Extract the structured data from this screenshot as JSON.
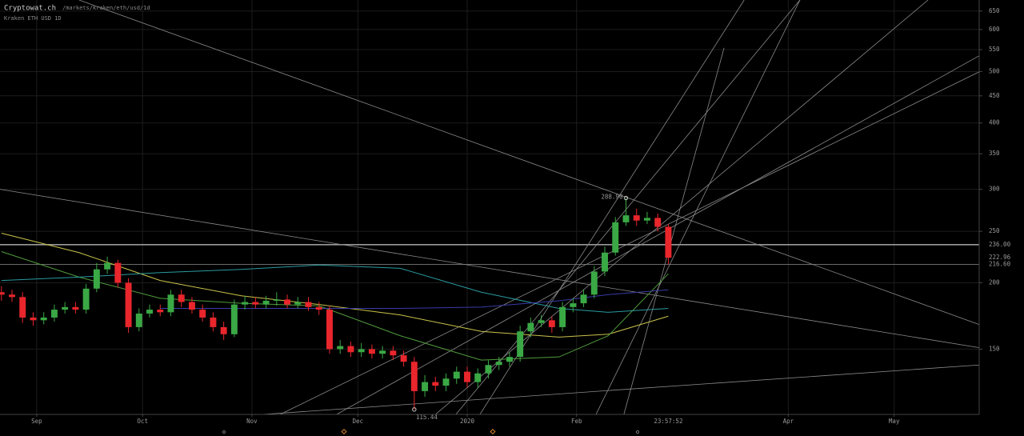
{
  "header": {
    "site": "Cryptowat.ch",
    "path": "/markets/kraken/eth/usd/1d",
    "market": "Kraken ETH USD 1D"
  },
  "chart_data": {
    "type": "candlestick",
    "log_y": true,
    "grid": true,
    "up_color": "#3aa845",
    "down_color": "#e8262c",
    "ylim": [
      113,
      682
    ],
    "yticks": [
      150,
      200,
      250,
      300,
      350,
      400,
      450,
      500,
      550,
      600,
      650
    ],
    "xlim": [
      -10.4,
      267.1
    ],
    "xticks": [
      {
        "value": 0,
        "label": "Sep"
      },
      {
        "value": 30,
        "label": "Oct"
      },
      {
        "value": 61,
        "label": "Nov"
      },
      {
        "value": 91,
        "label": "Dec"
      },
      {
        "value": 122,
        "label": "2020"
      },
      {
        "value": 153,
        "label": "Feb"
      },
      {
        "value": 213,
        "label": "Apr"
      },
      {
        "value": 243,
        "label": "May"
      }
    ],
    "x": [
      -10,
      -7,
      -4,
      -1,
      2,
      5,
      8,
      11,
      14,
      17,
      20,
      23,
      26,
      29,
      32,
      35,
      38,
      41,
      44,
      47,
      50,
      53,
      56,
      59,
      62,
      65,
      68,
      71,
      74,
      77,
      80,
      83,
      86,
      89,
      92,
      95,
      98,
      101,
      104,
      107,
      110,
      113,
      116,
      119,
      122,
      125,
      128,
      131,
      134,
      137,
      140,
      143,
      146,
      149,
      152,
      155,
      158,
      161,
      164,
      167,
      170,
      173,
      176,
      179
    ],
    "open": [
      192,
      190,
      188,
      172,
      170,
      172,
      178,
      180,
      178,
      195,
      212,
      218,
      200,
      165,
      175,
      178,
      176,
      190,
      184,
      178,
      172,
      165,
      160,
      182,
      184,
      182,
      185,
      186,
      182,
      184,
      180,
      178,
      150,
      152,
      148,
      150,
      147,
      149,
      146,
      142,
      125,
      130,
      128,
      132,
      136,
      130,
      135,
      140,
      142,
      145,
      162,
      168,
      170,
      165,
      180,
      183,
      190,
      210,
      228,
      260,
      268,
      262,
      265,
      255
    ],
    "high": [
      197,
      194,
      192,
      176,
      176,
      182,
      184,
      184,
      199,
      218,
      224,
      221,
      204,
      179,
      182,
      182,
      194,
      194,
      188,
      182,
      176,
      169,
      186,
      189,
      188,
      189,
      192,
      190,
      188,
      188,
      184,
      181,
      156,
      155,
      154,
      153,
      152,
      152,
      149,
      145,
      134,
      133,
      135,
      139,
      139,
      138,
      143,
      145,
      148,
      166,
      172,
      174,
      173,
      184,
      187,
      194,
      215,
      234,
      266,
      288.9,
      276,
      272,
      270,
      258
    ],
    "low": [
      185,
      184,
      168,
      166,
      167,
      169,
      175,
      175,
      175,
      192,
      208,
      196,
      161,
      162,
      172,
      173,
      173,
      180,
      175,
      169,
      162,
      156,
      158,
      178,
      179,
      179,
      181,
      179,
      179,
      177,
      174,
      147,
      147,
      145,
      145,
      144,
      144,
      143,
      139,
      115.44,
      122,
      125,
      125,
      129,
      127,
      127,
      132,
      137,
      139,
      142,
      158,
      165,
      161,
      162,
      176,
      180,
      187,
      206,
      225,
      256,
      256,
      258,
      250,
      216.6
    ],
    "close": [
      190,
      188,
      172,
      170,
      172,
      178,
      180,
      178,
      195,
      212,
      218,
      200,
      165,
      175,
      178,
      176,
      190,
      184,
      178,
      172,
      165,
      160,
      182,
      184,
      182,
      185,
      186,
      182,
      184,
      180,
      178,
      150,
      152,
      148,
      150,
      147,
      149,
      146,
      142,
      125,
      130,
      128,
      132,
      136,
      130,
      135,
      140,
      142,
      145,
      162,
      168,
      170,
      165,
      180,
      183,
      190,
      210,
      228,
      260,
      268,
      262,
      265,
      255,
      222.96
    ],
    "overlay_x": [
      -10,
      12,
      35,
      58,
      80,
      103,
      126,
      148,
      162,
      179
    ],
    "overlays": [
      {
        "color": "#c9c24a",
        "values": [
          248,
          228,
          202,
          189,
          182,
          174,
          162,
          158,
          160,
          173
        ]
      },
      {
        "color": "#4f9a3c",
        "values": [
          229,
          205,
          187,
          183,
          181,
          159,
          143,
          145,
          159,
          208
        ]
      },
      {
        "color": "#2a9aa0",
        "values": [
          202,
          205,
          209,
          212,
          216,
          213,
          192,
          179,
          176,
          179
        ]
      },
      {
        "color": "#3a3aa8",
        "values": [
          null,
          null,
          179,
          179,
          179,
          179,
          180,
          185,
          190,
          194
        ]
      }
    ],
    "trendlines": [
      {
        "x": [
          12,
          267
        ],
        "y": [
          682,
          167
        ]
      },
      {
        "x": [
          -10.4,
          267
        ],
        "y": [
          300,
          151
        ]
      },
      {
        "x": [
          64,
          267
        ],
        "y": [
          113,
          140
        ]
      },
      {
        "x": [
          69,
          267
        ],
        "y": [
          113,
          499
        ]
      },
      {
        "x": [
          85,
          267
        ],
        "y": [
          113,
          535
        ]
      },
      {
        "x": [
          113,
          252.6
        ],
        "y": [
          113,
          682
        ]
      },
      {
        "x": [
          118.8,
          216.3
        ],
        "y": [
          113,
          682
        ]
      },
      {
        "x": [
          125.6,
          200.5
        ],
        "y": [
          113,
          682
        ]
      },
      {
        "x": [
          158.5,
          216.3
        ],
        "y": [
          113,
          682
        ]
      },
      {
        "x": [
          166.4,
          194.8
        ],
        "y": [
          113,
          554
        ]
      }
    ],
    "price_lines": [
      {
        "value": 236,
        "label": "236.00",
        "line": true
      },
      {
        "value": 222.96,
        "label": "222.96",
        "line": false
      },
      {
        "value": 216.6,
        "label": "216.60",
        "line": true
      }
    ],
    "annotations": [
      {
        "x": 167,
        "y": 288.9,
        "label": "288.90"
      },
      {
        "x": 107,
        "y": 115.44,
        "label": "115.44"
      }
    ],
    "cursor": {
      "x": 179,
      "label": "23:57:52"
    }
  }
}
